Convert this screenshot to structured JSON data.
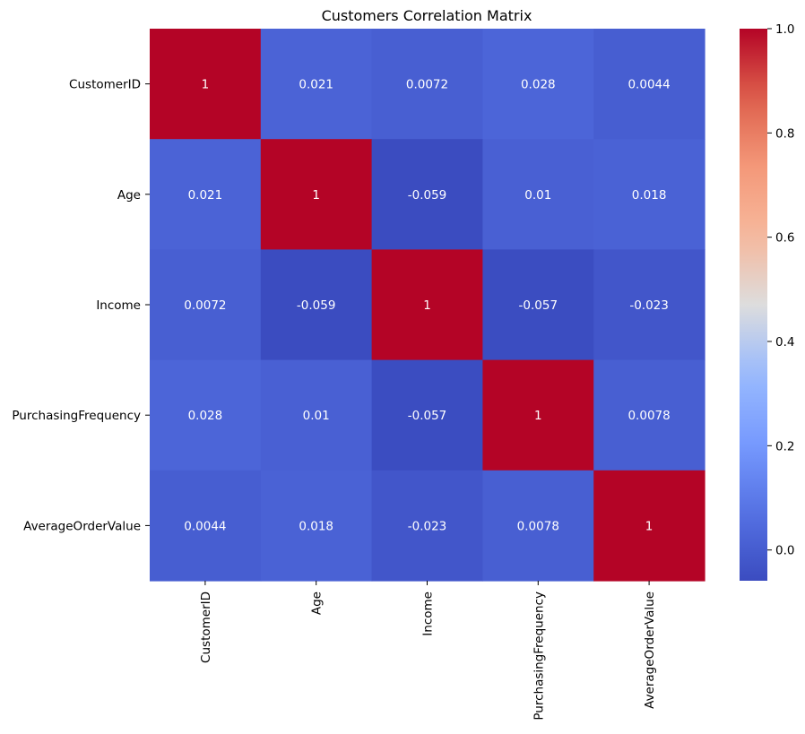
{
  "chart_data": {
    "type": "heatmap",
    "title": "Customers Correlation Matrix",
    "row_labels": [
      "CustomerID",
      "Age",
      "Income",
      "PurchasingFrequency",
      "AverageOrderValue"
    ],
    "col_labels": [
      "CustomerID",
      "Age",
      "Income",
      "PurchasingFrequency",
      "AverageOrderValue"
    ],
    "values": [
      [
        1,
        0.021,
        0.0072,
        0.028,
        0.0044
      ],
      [
        0.021,
        1,
        -0.059,
        0.01,
        0.018
      ],
      [
        0.0072,
        -0.059,
        1,
        -0.057,
        -0.023
      ],
      [
        0.028,
        0.01,
        -0.057,
        1,
        0.0078
      ],
      [
        0.0044,
        0.018,
        -0.023,
        0.0078,
        1
      ]
    ],
    "annotations": [
      [
        "1",
        "0.021",
        "0.0072",
        "0.028",
        "0.0044"
      ],
      [
        "0.021",
        "1",
        "-0.059",
        "0.01",
        "0.018"
      ],
      [
        "0.0072",
        "-0.059",
        "1",
        "-0.057",
        "-0.023"
      ],
      [
        "0.028",
        "0.01",
        "-0.057",
        "1",
        "0.0078"
      ],
      [
        "0.0044",
        "0.018",
        "-0.023",
        "0.0078",
        "1"
      ]
    ],
    "colormap": "coolwarm",
    "vmin": -0.059,
    "vmax": 1,
    "colorbar": {
      "ticks": [
        0.0,
        0.2,
        0.4,
        0.6,
        0.8,
        1.0
      ],
      "tick_labels": [
        "0.0",
        "0.2",
        "0.4",
        "0.6",
        "0.8",
        "1.0"
      ]
    },
    "colors": {
      "annotation_text": "#ffffff",
      "axis_text": "#000000"
    }
  }
}
